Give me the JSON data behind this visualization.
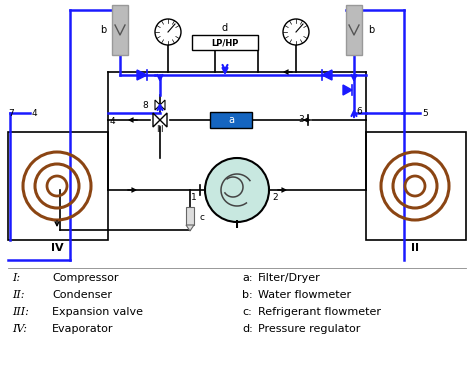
{
  "bg_color": "#ffffff",
  "blk": "#000000",
  "blu": "#1a1aff",
  "brn": "#8B4513",
  "box_blue": "#1565C0",
  "comp_fill": "#c8e8e0",
  "gray_fm": "#aaaaaa",
  "gray_fm_dark": "#888888",
  "legend_left": [
    [
      "I:",
      "Compressor"
    ],
    [
      "II:",
      "Condenser"
    ],
    [
      "III:",
      "Expansion valve"
    ],
    [
      "IV:",
      "Evaporator"
    ]
  ],
  "legend_right": [
    [
      "a:",
      "Filter/Dryer"
    ],
    [
      "b:",
      "Water flowmeter"
    ],
    [
      "c:",
      "Refrigerant flowmeter"
    ],
    [
      "d:",
      "Pressure regulator"
    ]
  ]
}
